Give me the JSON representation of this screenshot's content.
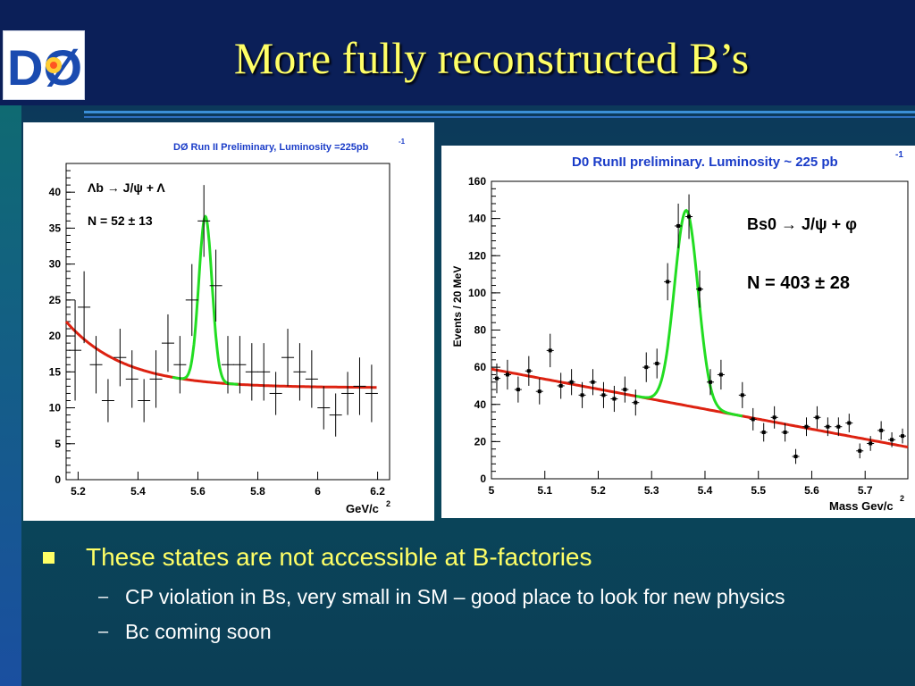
{
  "slide": {
    "title": "More fully reconstructed B’s",
    "logo_text": "DØ",
    "bullet_main": "These states are not accessible at B-factories",
    "sub_bullets": [
      "CP violation in Bs, very small in SM – good place to look for new physics",
      "Bc coming soon"
    ],
    "colors": {
      "title": "#ffff66",
      "fit_signal": "#22dd22",
      "fit_background": "#dd2211",
      "plot2_title": "#1a3cc8"
    }
  },
  "chart_data": [
    {
      "type": "scatter",
      "title": "DØ Run II Preliminary, Luminosity =225pb",
      "title_superscript": "-1",
      "xlabel": "GeV/c",
      "xlabel_superscript": "2",
      "ylabel": "",
      "xlim": [
        5.16,
        6.24
      ],
      "ylim": [
        0,
        44
      ],
      "xticks": [
        "5.2",
        "5.4",
        "5.6",
        "5.8",
        "6",
        "6.2"
      ],
      "yticks": [
        "0",
        "5",
        "10",
        "15",
        "20",
        "25",
        "30",
        "35",
        "40"
      ],
      "decay_label": "Λb → J/ψ + Λ",
      "yield_label": "N = 52 ± 13",
      "points": [
        {
          "x": 5.19,
          "y": 18,
          "err": 7
        },
        {
          "x": 5.22,
          "y": 24,
          "err": 5
        },
        {
          "x": 5.26,
          "y": 16,
          "err": 4
        },
        {
          "x": 5.3,
          "y": 11,
          "err": 3
        },
        {
          "x": 5.34,
          "y": 17,
          "err": 4
        },
        {
          "x": 5.38,
          "y": 14,
          "err": 4
        },
        {
          "x": 5.42,
          "y": 11,
          "err": 3
        },
        {
          "x": 5.46,
          "y": 14,
          "err": 4
        },
        {
          "x": 5.5,
          "y": 19,
          "err": 4
        },
        {
          "x": 5.54,
          "y": 16,
          "err": 4
        },
        {
          "x": 5.58,
          "y": 25,
          "err": 5
        },
        {
          "x": 5.62,
          "y": 36,
          "err": 5
        },
        {
          "x": 5.66,
          "y": 27,
          "err": 5
        },
        {
          "x": 5.7,
          "y": 16,
          "err": 4
        },
        {
          "x": 5.74,
          "y": 16,
          "err": 4
        },
        {
          "x": 5.78,
          "y": 15,
          "err": 4
        },
        {
          "x": 5.82,
          "y": 15,
          "err": 4
        },
        {
          "x": 5.86,
          "y": 12,
          "err": 3
        },
        {
          "x": 5.9,
          "y": 17,
          "err": 4
        },
        {
          "x": 5.94,
          "y": 15,
          "err": 4
        },
        {
          "x": 5.98,
          "y": 14,
          "err": 4
        },
        {
          "x": 6.02,
          "y": 10,
          "err": 3
        },
        {
          "x": 6.06,
          "y": 9,
          "err": 3
        },
        {
          "x": 6.1,
          "y": 12,
          "err": 3
        },
        {
          "x": 6.14,
          "y": 13,
          "err": 4
        },
        {
          "x": 6.18,
          "y": 12,
          "err": 4
        }
      ],
      "fit": {
        "bg_const": 12.8,
        "bg_amp": 9.2,
        "bg_decay": 5.2,
        "x0": 5.16,
        "peak_mean": 5.625,
        "peak_amp": 23,
        "peak_sigma": 0.022,
        "curve_xmax": 6.2
      }
    },
    {
      "type": "scatter",
      "title": "D0 RunII preliminary. Luminosity ~ 225 pb",
      "title_superscript": "-1",
      "xlabel": "Mass Gev/c",
      "xlabel_superscript": "2",
      "ylabel": "Events / 20 MeV",
      "xlim": [
        5.0,
        5.78
      ],
      "ylim": [
        0,
        160
      ],
      "xticks": [
        "5",
        "5.1",
        "5.2",
        "5.3",
        "5.4",
        "5.5",
        "5.6",
        "5.7"
      ],
      "yticks": [
        "0",
        "20",
        "40",
        "60",
        "80",
        "100",
        "120",
        "140",
        "160"
      ],
      "decay_label": "Bs0 → J/ψ + φ",
      "yield_label": "N = 403 ± 28",
      "points": [
        {
          "x": 5.01,
          "y": 54,
          "err": 8
        },
        {
          "x": 5.03,
          "y": 56,
          "err": 8
        },
        {
          "x": 5.05,
          "y": 48,
          "err": 7
        },
        {
          "x": 5.07,
          "y": 58,
          "err": 8
        },
        {
          "x": 5.09,
          "y": 47,
          "err": 7
        },
        {
          "x": 5.11,
          "y": 69,
          "err": 9
        },
        {
          "x": 5.13,
          "y": 50,
          "err": 7
        },
        {
          "x": 5.15,
          "y": 52,
          "err": 7
        },
        {
          "x": 5.17,
          "y": 45,
          "err": 7
        },
        {
          "x": 5.19,
          "y": 52,
          "err": 7
        },
        {
          "x": 5.21,
          "y": 45,
          "err": 7
        },
        {
          "x": 5.23,
          "y": 43,
          "err": 7
        },
        {
          "x": 5.25,
          "y": 48,
          "err": 7
        },
        {
          "x": 5.27,
          "y": 41,
          "err": 7
        },
        {
          "x": 5.29,
          "y": 60,
          "err": 8
        },
        {
          "x": 5.31,
          "y": 62,
          "err": 8
        },
        {
          "x": 5.33,
          "y": 106,
          "err": 10
        },
        {
          "x": 5.35,
          "y": 136,
          "err": 12
        },
        {
          "x": 5.37,
          "y": 141,
          "err": 12
        },
        {
          "x": 5.39,
          "y": 102,
          "err": 10
        },
        {
          "x": 5.41,
          "y": 52,
          "err": 7
        },
        {
          "x": 5.43,
          "y": 56,
          "err": 8
        },
        {
          "x": 5.47,
          "y": 45,
          "err": 7
        },
        {
          "x": 5.49,
          "y": 32,
          "err": 6
        },
        {
          "x": 5.51,
          "y": 25,
          "err": 5
        },
        {
          "x": 5.53,
          "y": 33,
          "err": 6
        },
        {
          "x": 5.55,
          "y": 25,
          "err": 5
        },
        {
          "x": 5.57,
          "y": 12,
          "err": 4
        },
        {
          "x": 5.59,
          "y": 28,
          "err": 5
        },
        {
          "x": 5.61,
          "y": 33,
          "err": 6
        },
        {
          "x": 5.63,
          "y": 28,
          "err": 5
        },
        {
          "x": 5.65,
          "y": 28,
          "err": 5
        },
        {
          "x": 5.67,
          "y": 30,
          "err": 5
        },
        {
          "x": 5.69,
          "y": 15,
          "err": 4
        },
        {
          "x": 5.71,
          "y": 19,
          "err": 4
        },
        {
          "x": 5.73,
          "y": 26,
          "err": 5
        },
        {
          "x": 5.75,
          "y": 21,
          "err": 4
        },
        {
          "x": 5.77,
          "y": 23,
          "err": 4
        }
      ],
      "fit": {
        "bg_start": 59,
        "bg_slope": -53.8,
        "x0": 5.0,
        "peak_mean": 5.365,
        "peak_amp": 105,
        "peak_sigma": 0.022,
        "peak_range": [
          5.27,
          5.47
        ],
        "curve_xmax": 5.78
      }
    }
  ]
}
